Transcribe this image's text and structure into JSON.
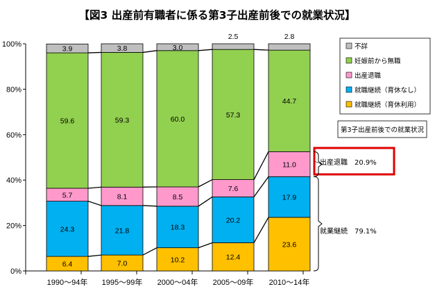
{
  "chart_data": {
    "type": "bar",
    "stacked": true,
    "title": "【図3 出産前有職者に係る第3子出産前後での就業状況】",
    "categories": [
      "1990～94年",
      "1995～99年",
      "2000～04年",
      "2005～09年",
      "2010～14年"
    ],
    "ylim": [
      0,
      100
    ],
    "yticks": [
      "0%",
      "20%",
      "40%",
      "60%",
      "80%",
      "100%"
    ],
    "grid": false,
    "legend_position": "right",
    "series": [
      {
        "name": "就職継続（育休利用）",
        "color": "#FFC000",
        "values": [
          6.4,
          7.0,
          10.2,
          12.4,
          23.6
        ]
      },
      {
        "name": "就職継続（育休なし）",
        "color": "#00B0F0",
        "values": [
          24.3,
          21.8,
          18.3,
          20.2,
          17.9
        ]
      },
      {
        "name": "出産退職",
        "color": "#FF99CC",
        "values": [
          5.7,
          8.1,
          8.5,
          7.6,
          11.0
        ]
      },
      {
        "name": "妊娠前から無職",
        "color": "#92D050",
        "values": [
          59.6,
          59.3,
          60.0,
          57.3,
          44.7
        ]
      },
      {
        "name": "不詳",
        "color": "#BFBFBF",
        "values": [
          3.9,
          3.8,
          3.0,
          2.5,
          2.8
        ]
      }
    ],
    "legend_order": [
      "不詳",
      "妊娠前から無職",
      "出産退職",
      "就職継続（育休なし）",
      "就職継続（育休利用）"
    ],
    "subtitle_box": "第3子出産前後での就業状況",
    "annotation_retire": "出産退職　20.9%",
    "annotation_continue": "就業継続　79.1%",
    "highlight_color": "#E00000"
  }
}
